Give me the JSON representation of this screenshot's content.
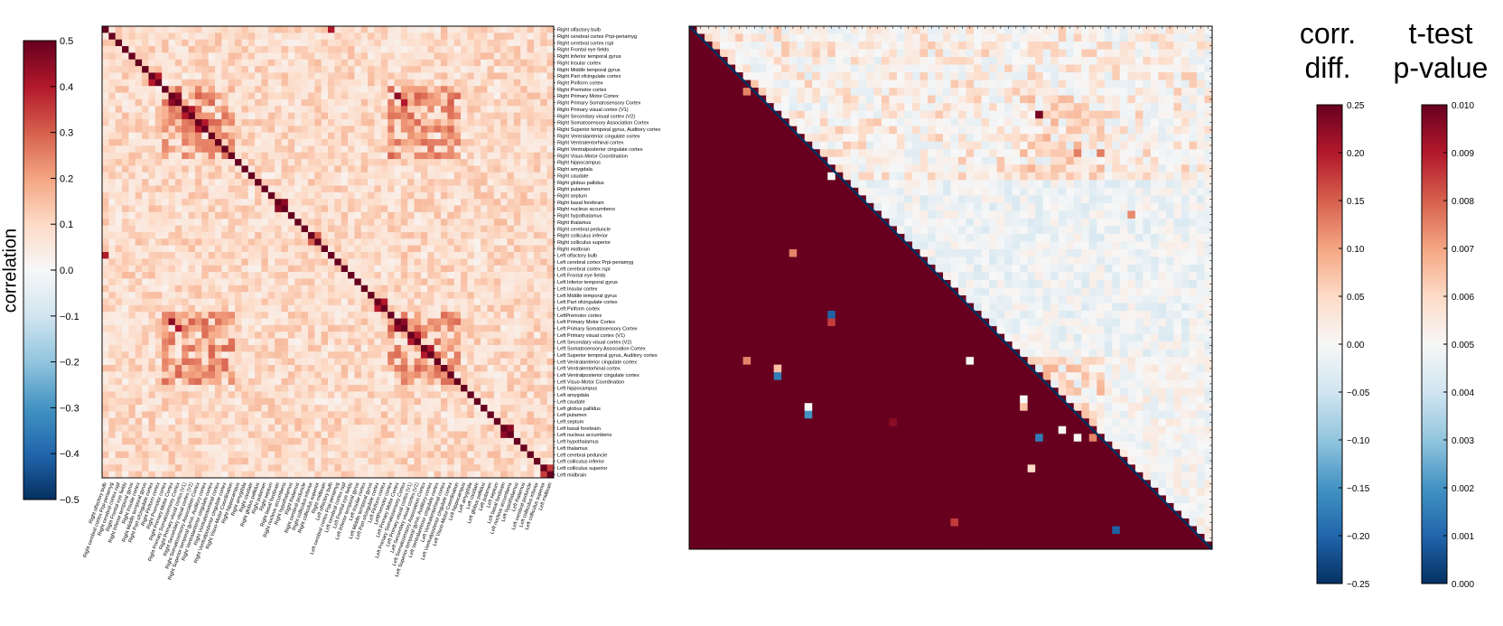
{
  "left_heatmap": {
    "colorbar_label": "correlation",
    "colorbar_ticks": [
      "0.5",
      "0.4",
      "0.3",
      "0.2",
      "0.1",
      "0.0",
      "−0.1",
      "−0.2",
      "−0.3",
      "−0.4",
      "−0.5"
    ],
    "regions": [
      "Right olfactory bulb",
      "Right cerebral cortex Prpi-periamyg",
      "Right cerebral cortex rspl",
      "Right Frontal eye fields",
      "Right Inferior temporal gyrus",
      "Right Insular cortex",
      "Right Middle temporal gyrus",
      "Right Part ofcingulate cortex",
      "Right Piriform cortex",
      "Right Premotor cortex",
      "Right Primary Motor Cortex",
      "Right Primary Somatosensory Cortex",
      "Right Primary visual cortex (V1)",
      "Right Secondary visual cortex (V2)",
      "Right Somatosensory Association Cortex",
      "Right Superior temporal gyrus, Auditory cortex",
      "Right Ventralanterior cingulate cortex",
      "Right Ventralentorhinal cortex",
      "Right Ventralposterior cingulate cortex",
      "Right Visuo-Motor Coordination",
      "Right hippocampus",
      "Right amygdala",
      "Right caudate",
      "Right globus pallidus",
      "Right putamen",
      "Right septum",
      "Right basal forebrain",
      "Right nucleus accumbens",
      "Right hypothalamus",
      "Right thalamus",
      "Right cerebral peduncle",
      "Right colliculus inferior",
      "Right colliculus superior",
      "Right midbrain",
      "Left olfactory bulb",
      "Left cerebral cortex Prpi-periamyg",
      "Left cerebral cortex rspl",
      "Left Frontal eye fields",
      "Left Inferior temporal gyrus",
      "Left Insular cortex",
      "Left Middle temporal gyrus",
      "Left Part ofcingulate cortex",
      "Left Piriform cortex",
      "LeftPremotor cortex",
      "Left Primary Motor Cortex",
      "Left Primary Somatosensory Cortex",
      "Left Primary visual cortex (V1)",
      "Left Secondary visual cortex (V2)",
      "Left Somatosensory Association Cortex",
      "Left Superior temporal gyrus, Auditory cortex",
      "Left Ventralanterior cingulate cortex",
      "Left Ventralentorhinal cortex",
      "Left Ventralposterior cingulate cortex",
      "Left Visuo-Motor Coordination",
      "Left hippocampus",
      "Left amygdala",
      "Left caudate",
      "Left globus pallidus",
      "Left putamen",
      "Left septum",
      "Left basal forebrain",
      "Left nucleus accumbens",
      "Left hypothalamus",
      "Left thalamus",
      "Left cerebral peduncle",
      "Left colliculus inferior",
      "Left colliculus superior",
      "Left midbrain"
    ],
    "x_tick_labels": [
      "Right olfactory bulb",
      "Right cerebral cortex Prpi-periamyg",
      "Right cerebral cortex rspl",
      "Right Frontal eye fields",
      "Right Inferior temporal gyrus",
      "Right Insular cortex",
      "Right Middle temporal gyrus",
      "Right Part ofcingulate cortex",
      "Right Piriform cortex",
      "Right Premotor cortex",
      "Right Primary Motor Cortex",
      "Right Primary Somatosensory Cortex",
      "Right Primary visual cortex (V1)",
      "Right Secondary visual cortex (V2)",
      "Right Somatosensory Association Cortex",
      "Right Superior temporal gyrus, Auditory cortex",
      "Right Ventralanterior cingulate cortex",
      "Right Ventralentorhinal cortex",
      "Right Ventralposterior cingulate cortex",
      "Right Visuo-Motor Coordination",
      "Right hippocampus",
      "Right amygdala",
      "Right caudate",
      "Right globus pallidus",
      "Right putamen",
      "Right septum",
      "Right basal forebrain",
      "Right nucleus accumbens",
      "Right hypothalamus",
      "Right thalamus",
      "Right cerebral peduncle",
      "Right colliculus inferior",
      "Right colliculus superior",
      "Right midbrain",
      "Left olfactory bulb",
      "Left cerebral cortex Prpi-periamyg",
      "Left cerebral cortex rspl",
      "Left Frontal eye fields",
      "Left Inferior temporal gyrus",
      "Left Insular cortex",
      "Left Middle temporal gyrus",
      "Left Part ofcingulate cortex",
      "Left Piriform cortex",
      "LeftPremotor cortex",
      "Left Primary Motor Cortex",
      "Left Primary Somatosensory Cortex",
      "Left Primary visual cortex (V1)",
      "Left Secondary visual cortex (V2)",
      "Left Somatosensory Association Cortex",
      "Left Superior temporal gyrus, Auditory cortex",
      "Left Ventralanterior cingulate cortex",
      "Left Ventralentorhinal cortex",
      "Left Ventralposterior cingulate cortex",
      "Left Visuo-Motor Coordination",
      "Left hippocampus",
      "Left amygdala",
      "Left caudate",
      "Left globus pallidus",
      "Left putamen",
      "Left septum",
      "Left basal forebrain",
      "Left nucleus accumbens",
      "Left hypothalamus",
      "Left thalamus",
      "Left cerebral peduncle",
      "Left colliculus inferior",
      "Left colliculus superior",
      "Left midbrain"
    ]
  },
  "right_panel": {
    "title_corr": [
      "corr.",
      "diff."
    ],
    "title_ttest": [
      "t-test",
      "p-value"
    ],
    "corr_colorbar_ticks": [
      "0.25",
      "0.20",
      "0.15",
      "0.10",
      "0.05",
      "0.00",
      "−0.05",
      "−0.10",
      "−0.15",
      "−0.20",
      "−0.25"
    ],
    "pvalue_colorbar_ticks": [
      "0.010",
      "0.009",
      "0.008",
      "0.007",
      "0.006",
      "0.005",
      "0.004",
      "0.003",
      "0.002",
      "0.001",
      "0.000"
    ]
  },
  "chart_data": [
    {
      "type": "heatmap",
      "title": "",
      "description_ref": "left correlation matrix, 68 x 68 brain regions",
      "n": 68,
      "vmin": -0.5,
      "vmax": 0.5,
      "colorbar_label": "correlation",
      "colormap": "RdBu_r",
      "diagonal_value": 0.5,
      "baseline_offdiag": 0.1,
      "strong_blocks": [
        {
          "rows": [
            9,
            19
          ],
          "cols": [
            9,
            19
          ],
          "value": 0.25
        },
        {
          "rows": [
            43,
            53
          ],
          "cols": [
            43,
            53
          ],
          "value": 0.25
        },
        {
          "rows": [
            9,
            19
          ],
          "cols": [
            43,
            53
          ],
          "value": 0.25
        },
        {
          "rows": [
            43,
            53
          ],
          "cols": [
            9,
            19
          ],
          "value": 0.25
        }
      ],
      "strong_pairs": [
        {
          "i": 10,
          "j": 11,
          "value": 0.45
        },
        {
          "i": 12,
          "j": 13,
          "value": 0.4
        },
        {
          "i": 14,
          "j": 15,
          "value": 0.4
        },
        {
          "i": 44,
          "j": 45,
          "value": 0.45
        },
        {
          "i": 46,
          "j": 47,
          "value": 0.4
        },
        {
          "i": 48,
          "j": 49,
          "value": 0.4
        },
        {
          "i": 26,
          "j": 27,
          "value": 0.45
        },
        {
          "i": 60,
          "j": 61,
          "value": 0.45
        },
        {
          "i": 0,
          "j": 34,
          "value": 0.4
        },
        {
          "i": 44,
          "j": 10,
          "value": 0.45
        },
        {
          "i": 45,
          "j": 11,
          "value": 0.4
        },
        {
          "i": 8,
          "j": 7,
          "value": 0.4
        },
        {
          "i": 42,
          "j": 41,
          "value": 0.4
        },
        {
          "i": 66,
          "j": 67,
          "value": 0.35
        },
        {
          "i": 32,
          "j": 31,
          "value": 0.3
        }
      ]
    },
    {
      "type": "heatmap",
      "description_ref": "right panel: upper triangle = correlation difference, lower triangle = t-test p-value",
      "n": 68,
      "upper_triangle": {
        "label": "corr. diff.",
        "vmin": -0.25,
        "vmax": 0.25,
        "colormap": "RdBu_r",
        "positive_blocks": [
          {
            "rows": [
              9,
              19
            ],
            "cols": [
              43,
              53
            ],
            "value": 0.06
          },
          {
            "rows": [
              43,
              53
            ],
            "cols": [
              43,
              53
            ],
            "value": 0.06
          }
        ],
        "strong_cells": [
          {
            "i": 11,
            "j": 45,
            "value": 0.24
          },
          {
            "i": 16,
            "j": 50,
            "value": 0.13
          },
          {
            "i": 16,
            "j": 53,
            "value": 0.13
          },
          {
            "i": 24,
            "j": 57,
            "value": 0.12
          }
        ]
      },
      "lower_triangle": {
        "label": "p-value",
        "vmin": 0.0,
        "vmax": 0.01,
        "colormap": "RdBu_r",
        "default_value": 0.01,
        "significant_cells": [
          {
            "i": 8,
            "j": 7,
            "value": 0.0075
          },
          {
            "i": 19,
            "j": 18,
            "value": 0.005
          },
          {
            "i": 29,
            "j": 13,
            "value": 0.0075
          },
          {
            "i": 37,
            "j": 18,
            "value": 0.0009
          },
          {
            "i": 38,
            "j": 18,
            "value": 0.0085
          },
          {
            "i": 43,
            "j": 7,
            "value": 0.0075
          },
          {
            "i": 43,
            "j": 36,
            "value": 0.005
          },
          {
            "i": 44,
            "j": 11,
            "value": 0.0065
          },
          {
            "i": 45,
            "j": 11,
            "value": 0.0015
          },
          {
            "i": 48,
            "j": 43,
            "value": 0.005
          },
          {
            "i": 49,
            "j": 43,
            "value": 0.0065
          },
          {
            "i": 49,
            "j": 15,
            "value": 0.005
          },
          {
            "i": 50,
            "j": 15,
            "value": 0.002
          },
          {
            "i": 51,
            "j": 26,
            "value": 0.0095
          },
          {
            "i": 52,
            "j": 48,
            "value": 0.005
          },
          {
            "i": 53,
            "j": 45,
            "value": 0.0015
          },
          {
            "i": 53,
            "j": 50,
            "value": 0.005
          },
          {
            "i": 53,
            "j": 52,
            "value": 0.0075
          },
          {
            "i": 57,
            "j": 44,
            "value": 0.006
          },
          {
            "i": 64,
            "j": 34,
            "value": 0.0085
          },
          {
            "i": 65,
            "j": 55,
            "value": 0.0009
          }
        ]
      },
      "diagonal_line": true
    }
  ]
}
